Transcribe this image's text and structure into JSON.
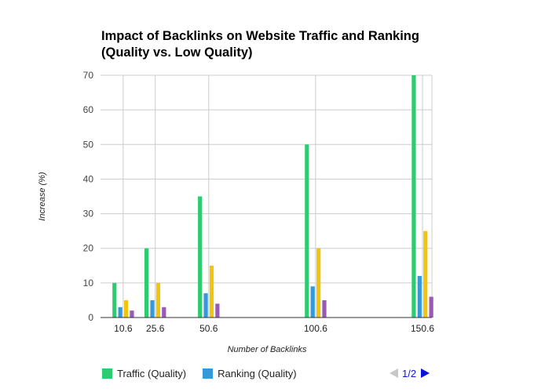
{
  "chart_data": {
    "type": "bar",
    "title": "Impact of Backlinks on Website Traffic and Ranking (Quality vs. Low Quality)",
    "title_lines": [
      "Impact of Backlinks on Website Traffic and Ranking",
      "(Quality vs. Low Quality)"
    ],
    "xlabel": "Number of Backlinks",
    "ylabel": "Increase (%)",
    "x": [
      10.6,
      25.6,
      50.6,
      100.6,
      150.6
    ],
    "x_tick_labels": [
      "10.6",
      "25.6",
      "50.6",
      "100.6",
      "150.6"
    ],
    "xlim": [
      0,
      155
    ],
    "ylim": [
      0,
      70
    ],
    "y_ticks": [
      0,
      10,
      20,
      30,
      40,
      50,
      60,
      70
    ],
    "grid": true,
    "legend_position": "bottom",
    "series": [
      {
        "name": "Traffic (Quality)",
        "color": "#2ecc71",
        "values": [
          10,
          20,
          35,
          50,
          70
        ]
      },
      {
        "name": "Ranking (Quality)",
        "color": "#3498db",
        "values": [
          3,
          5,
          7,
          9,
          12
        ]
      },
      {
        "name": "",
        "color": "#f1c40f",
        "values": [
          5,
          10,
          15,
          20,
          25
        ]
      },
      {
        "name": "",
        "color": "#9b59b6",
        "values": [
          2,
          3,
          4,
          5,
          6
        ]
      }
    ]
  },
  "legend": {
    "items": [
      {
        "label": "Traffic (Quality)",
        "color": "#2ecc71"
      },
      {
        "label": "Ranking (Quality)",
        "color": "#3498db"
      }
    ],
    "page_indicator": "1/2",
    "prev_icon": "triangle-left-icon",
    "next_icon": "triangle-right-icon"
  }
}
